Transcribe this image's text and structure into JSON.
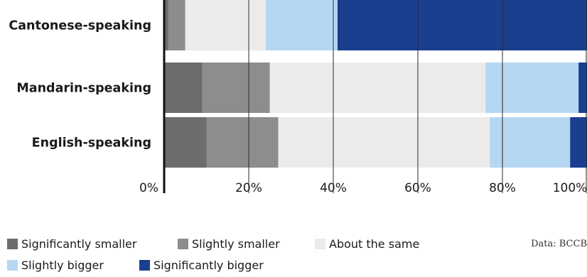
{
  "chart_data": {
    "type": "bar",
    "orientation": "horizontal",
    "stacked": true,
    "title": "",
    "xlabel": "",
    "ylabel": "",
    "xlim": [
      0,
      100
    ],
    "x_ticks": [
      "0%",
      "20%",
      "40%",
      "60%",
      "80%",
      "100%"
    ],
    "grid": "vertical",
    "legend_position": "bottom",
    "categories": [
      "Cantonese-speaking",
      "Mandarin-speaking",
      "English-speaking"
    ],
    "series": [
      {
        "name": "Significantly smaller",
        "color": "#6d6d6b",
        "values": [
          1,
          9,
          10
        ]
      },
      {
        "name": "Slightly smaller",
        "color": "#8d8d8b",
        "values": [
          4,
          16,
          17
        ]
      },
      {
        "name": "About the same",
        "color": "#ebebeb",
        "values": [
          19,
          51,
          50
        ]
      },
      {
        "name": "Slightly bigger",
        "color": "#b6d7f2",
        "values": [
          17,
          22,
          19
        ]
      },
      {
        "name": "Significantly bigger",
        "color": "#1a3f8f",
        "values": [
          59,
          2,
          4
        ]
      }
    ],
    "source": "Data: BCCB"
  }
}
